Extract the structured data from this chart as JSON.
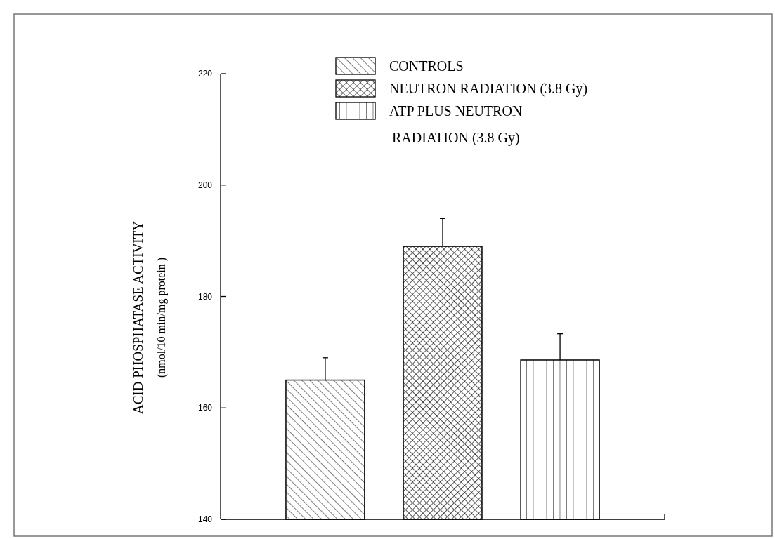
{
  "chart_data": {
    "type": "bar",
    "ylabel": "ACID PHOSPHATASE ACTIVITY\n(nmol/10 min/mg protein )",
    "categories": [
      null
    ],
    "series": [
      {
        "name": "CONTROLS",
        "color": "#000000",
        "values": [
          165
        ],
        "errors": [
          [
            165,
            169
          ]
        ]
      },
      {
        "name": "NEUTRON RADIATION (3.8 Gy)",
        "color": "#000000",
        "values": [
          189
        ],
        "errors": [
          [
            189,
            194
          ]
        ]
      },
      {
        "name": "ATP PLUS NEUTRON RADIATION (3.8 Gy)",
        "color": "#000000",
        "values": [
          168.6
        ],
        "errors": [
          [
            168.6,
            173.3
          ]
        ]
      }
    ],
    "ylim": [
      140,
      220
    ],
    "yticks": [
      140,
      160,
      180,
      200,
      220
    ],
    "legend": "top",
    "grid": false
  }
}
